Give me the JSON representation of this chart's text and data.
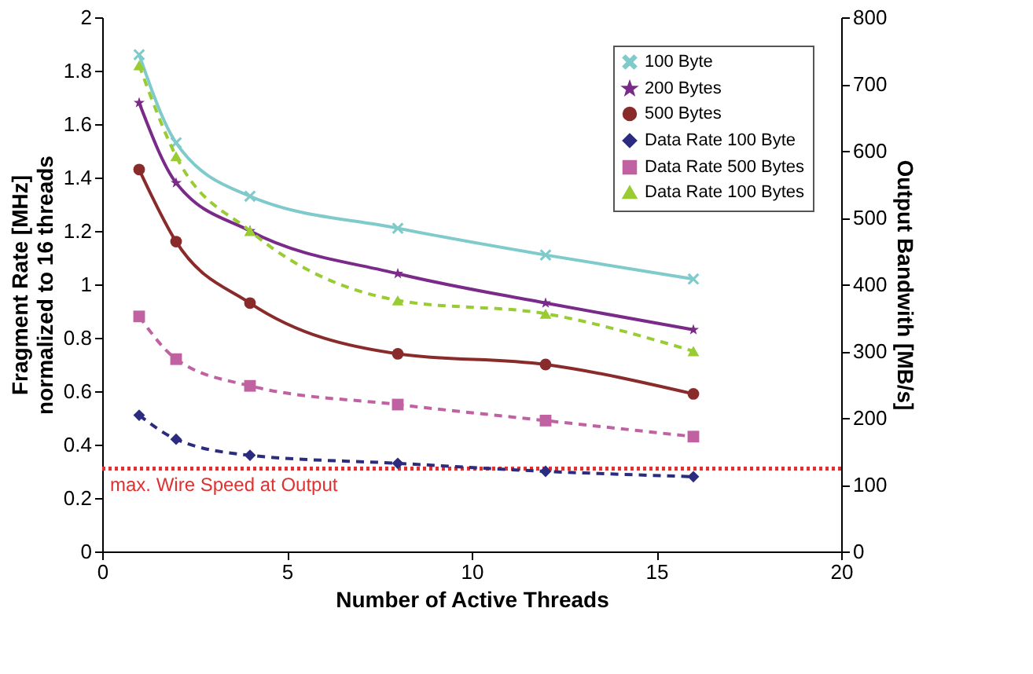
{
  "chart_data": {
    "type": "line",
    "xlabel": "Number of Active Threads",
    "ylabel": "Fragment Rate [MHz]\nnormalized to 16 threads",
    "y2label": "Output Bandwith [MB/s]",
    "x": [
      1,
      2,
      4,
      8,
      12,
      16
    ],
    "xlim": [
      0,
      20
    ],
    "xticks": [
      0,
      5,
      10,
      15,
      20
    ],
    "ylim": [
      0,
      2
    ],
    "yticks": [
      0,
      0.2,
      0.4,
      0.6,
      0.8,
      1,
      1.2,
      1.4,
      1.6,
      1.8,
      2
    ],
    "y2lim": [
      0,
      800
    ],
    "y2ticks": [
      0,
      100,
      200,
      300,
      400,
      500,
      600,
      700,
      800
    ],
    "grid": false,
    "legend": "top right",
    "series": [
      {
        "name": "100 Byte",
        "color": "#7fcaca",
        "marker": "cross",
        "line_style": "solid",
        "values": [
          1.86,
          1.53,
          1.33,
          1.21,
          1.11,
          1.02
        ]
      },
      {
        "name": "200 Bytes",
        "color": "#7a2a88",
        "marker": "star",
        "line_style": "solid",
        "values": [
          1.68,
          1.38,
          1.2,
          1.04,
          0.93,
          0.83
        ]
      },
      {
        "name": "500 Bytes",
        "color": "#8a2b2b",
        "marker": "circle",
        "line_style": "solid",
        "values": [
          1.43,
          1.16,
          0.93,
          0.74,
          0.7,
          0.59
        ]
      },
      {
        "name": "Data Rate 100 Byte",
        "color": "#2b2b80",
        "marker": "diamond",
        "line_style": "dashed",
        "axis": "y2",
        "values": [
          204,
          168,
          144,
          132,
          120,
          112
        ]
      },
      {
        "name": "Data Rate 500 Bytes",
        "color": "#c062a2",
        "marker": "square",
        "line_style": "dashed",
        "axis": "y2",
        "values": [
          352,
          288,
          248,
          220,
          196,
          172
        ]
      },
      {
        "name": "Data Rate 100 Bytes",
        "color": "#99cc33",
        "marker": "triangle",
        "line_style": "dashed",
        "axis": "y2",
        "values": [
          728,
          592,
          480,
          376,
          356,
          300
        ]
      }
    ],
    "ref_lines": [
      {
        "axis": "y",
        "value": 0.31,
        "label": "max. Wire Speed at Output",
        "color": "#e03030",
        "line_style": "dotted"
      }
    ]
  }
}
